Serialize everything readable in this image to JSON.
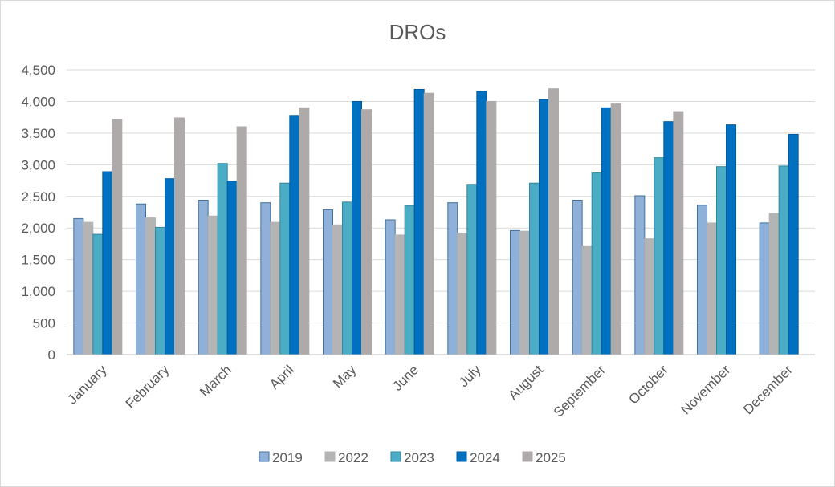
{
  "chart_data": {
    "type": "bar",
    "title": "DROs",
    "xlabel": "",
    "ylabel": "",
    "ylim": [
      0,
      4500
    ],
    "yticks": [
      0,
      500,
      1000,
      1500,
      2000,
      2500,
      3000,
      3500,
      4000,
      4500
    ],
    "ytick_labels": [
      "0",
      "500",
      "1,000",
      "1,500",
      "2,000",
      "2,500",
      "3,000",
      "3,500",
      "4,000",
      "4,500"
    ],
    "grid": true,
    "legend_position": "bottom",
    "categories": [
      "January",
      "February",
      "March",
      "April",
      "May",
      "June",
      "July",
      "August",
      "September",
      "October",
      "November",
      "December"
    ],
    "series": [
      {
        "name": "2019",
        "color": "#8FB0D8",
        "stroke": "#41719C",
        "values": [
          2150,
          2380,
          2440,
          2400,
          2290,
          2130,
          2400,
          1960,
          2440,
          2510,
          2360,
          2080
        ]
      },
      {
        "name": "2022",
        "color": "#B4B4B4",
        "stroke": "#B4B4B4",
        "values": [
          2090,
          2160,
          2190,
          2090,
          2050,
          1890,
          1920,
          1950,
          1720,
          1830,
          2080,
          2230
        ]
      },
      {
        "name": "2023",
        "color": "#4BACC6",
        "stroke": "#31859C",
        "values": [
          1900,
          2010,
          3020,
          2710,
          2410,
          2350,
          2690,
          2710,
          2870,
          3110,
          2970,
          2980
        ]
      },
      {
        "name": "2024",
        "color": "#0070C0",
        "stroke": "#005A9E",
        "values": [
          2890,
          2780,
          2740,
          3780,
          4000,
          4190,
          4160,
          4030,
          3900,
          3680,
          3630,
          3480
        ]
      },
      {
        "name": "2025",
        "color": "#AEAAAA",
        "stroke": "#AEAAAA",
        "values": [
          3720,
          3740,
          3600,
          3900,
          3870,
          4130,
          4000,
          4200,
          3960,
          3840,
          null,
          null
        ]
      }
    ]
  }
}
